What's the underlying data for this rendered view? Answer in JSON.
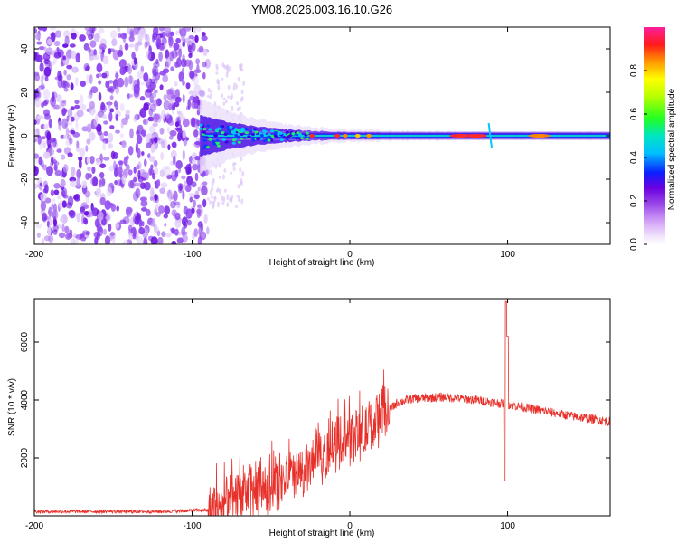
{
  "title": "YM08.2026.003.16.10.G26",
  "chart_data": [
    {
      "type": "heatmap",
      "name": "spectrogram",
      "xlabel": "Height of straight line (km)",
      "ylabel": "Frequency (Hz)",
      "xlim": [
        -200,
        165
      ],
      "ylim": [
        -50,
        50
      ],
      "xticks": [
        -200,
        -100,
        0,
        100
      ],
      "yticks": [
        -40,
        -20,
        0,
        20,
        40
      ],
      "ridge": {
        "frequency_hz": 0,
        "start_km": -95,
        "noise_region_km": [
          -200,
          -90
        ]
      },
      "colorbar": {
        "label": "Normalized spectral amplitude",
        "range": [
          0,
          1
        ],
        "ticks": [
          0.0,
          0.2,
          0.4,
          0.6,
          0.8
        ]
      }
    },
    {
      "type": "line",
      "name": "snr",
      "xlabel": "Height of straight line (km)",
      "ylabel": "SNR (10 * v/v)",
      "xlim": [
        -200,
        165
      ],
      "ylim": [
        0,
        7500
      ],
      "xticks": [
        -200,
        -100,
        0,
        100
      ],
      "yticks": [
        2000,
        4000,
        6000
      ],
      "color": "#e8302a",
      "profile": [
        [
          -200,
          150
        ],
        [
          -120,
          150
        ],
        [
          -90,
          200
        ],
        [
          -80,
          350
        ],
        [
          -70,
          700
        ],
        [
          -60,
          900
        ],
        [
          -50,
          1000
        ],
        [
          -40,
          1300
        ],
        [
          -30,
          1500
        ],
        [
          -20,
          1900
        ],
        [
          -10,
          2400
        ],
        [
          0,
          2700
        ],
        [
          10,
          2900
        ],
        [
          20,
          3400
        ],
        [
          30,
          3900
        ],
        [
          40,
          4050
        ],
        [
          60,
          4100
        ],
        [
          80,
          4000
        ],
        [
          100,
          3850
        ],
        [
          120,
          3650
        ],
        [
          140,
          3450
        ],
        [
          165,
          3250
        ]
      ],
      "spike": {
        "x": 99,
        "peak": 7400,
        "dip": 1200
      }
    }
  ]
}
